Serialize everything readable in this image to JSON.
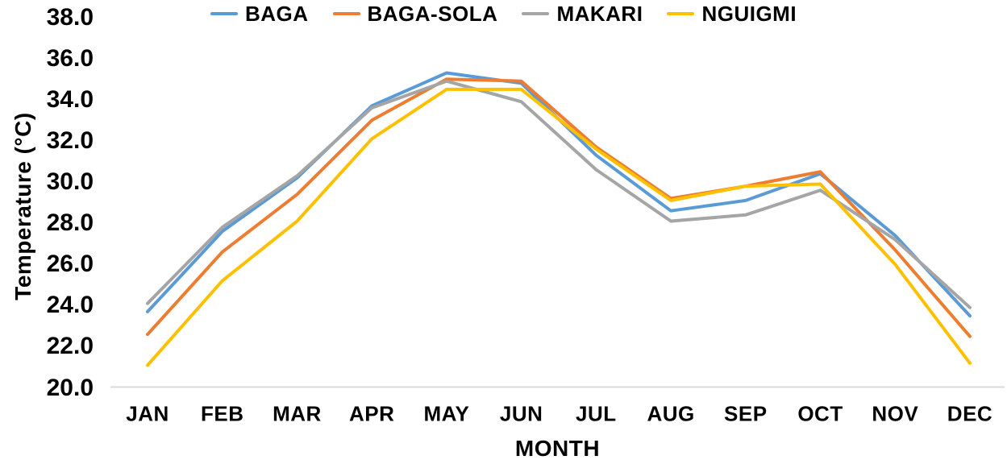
{
  "chart_data": {
    "type": "line",
    "xlabel": "MONTH",
    "ylabel": "Temperature (°C)",
    "ylim": [
      20.0,
      38.0
    ],
    "ytick_step": 2.0,
    "ytick_values": [
      38.0,
      36.0,
      34.0,
      32.0,
      30.0,
      28.0,
      26.0,
      24.0,
      22.0,
      20.0
    ],
    "ytick_labels": [
      "38.0",
      "36.0",
      "34.0",
      "32.0",
      "30.0",
      "28.0",
      "26.0",
      "24.0",
      "22.0",
      "20.0"
    ],
    "categories": [
      "JAN",
      "FEB",
      "MAR",
      "APR",
      "MAY",
      "JUN",
      "JUL",
      "AUG",
      "SEP",
      "OCT",
      "NOV",
      "DEC"
    ],
    "series": [
      {
        "name": "BAGA",
        "color": "#5B9BD5",
        "values": [
          23.7,
          27.6,
          30.2,
          33.7,
          35.3,
          34.8,
          31.3,
          28.6,
          29.1,
          30.4,
          27.4,
          23.5
        ]
      },
      {
        "name": "BAGA-SOLA",
        "color": "#ED7D31",
        "values": [
          22.6,
          26.6,
          29.4,
          33.0,
          35.0,
          34.9,
          31.7,
          29.2,
          29.8,
          30.5,
          26.7,
          22.5
        ]
      },
      {
        "name": "MAKARI",
        "color": "#A5A5A5",
        "values": [
          24.1,
          27.8,
          30.3,
          33.6,
          34.9,
          33.9,
          30.6,
          28.1,
          28.4,
          29.6,
          27.2,
          23.9
        ]
      },
      {
        "name": "NGUIGMI",
        "color": "#FFC000",
        "values": [
          21.1,
          25.2,
          28.1,
          32.1,
          34.5,
          34.5,
          31.6,
          29.1,
          29.8,
          29.9,
          26.0,
          21.2
        ]
      }
    ],
    "legend_position": "top",
    "grid": false,
    "axis_line_color": "#D9D9D9",
    "text_color": "#000000"
  }
}
